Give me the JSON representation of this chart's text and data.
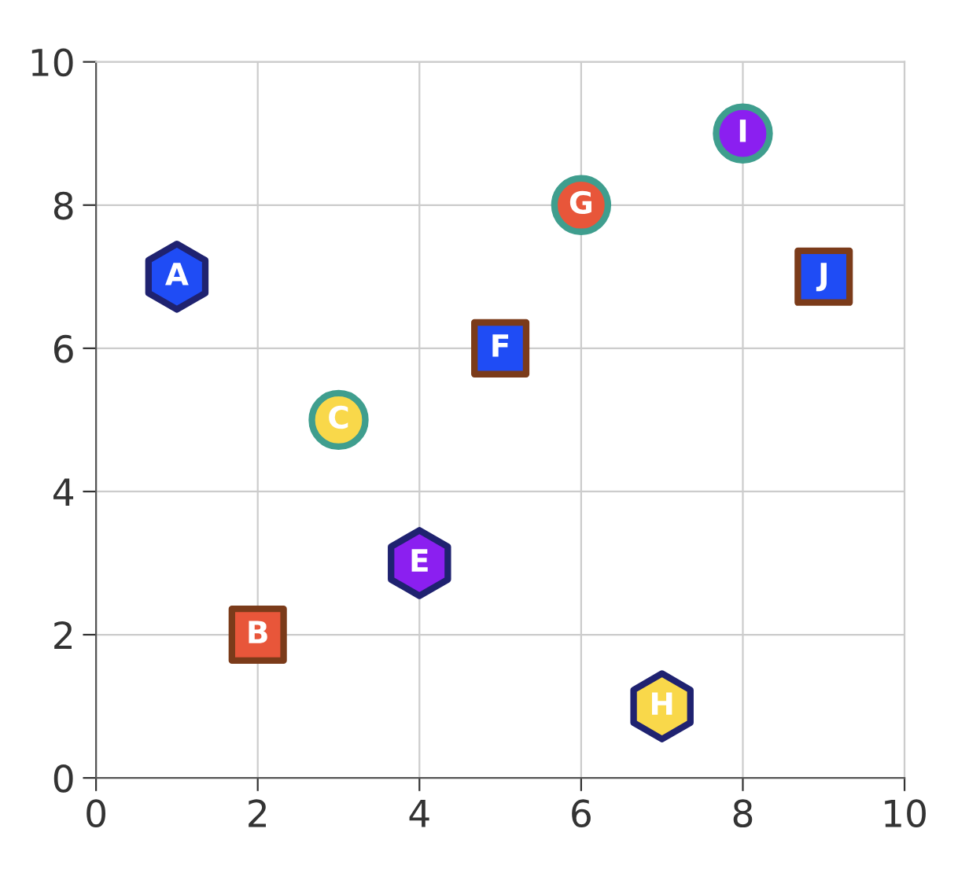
{
  "chart_data": {
    "type": "scatter",
    "xlim": [
      0,
      10
    ],
    "ylim": [
      0,
      10
    ],
    "xticks": [
      0,
      2,
      4,
      6,
      8,
      10
    ],
    "yticks": [
      0,
      2,
      4,
      6,
      8,
      10
    ],
    "grid": true,
    "series": [
      {
        "x": [
          1,
          4,
          7
        ],
        "values": [
          7,
          3,
          1
        ],
        "colors": [
          "#1f4cf5",
          "#8b1ff0",
          "#f9d84a"
        ]
      },
      {
        "marker": "square",
        "x": [
          2,
          5,
          9
        ],
        "values": [
          2,
          6,
          7
        ],
        "colors": [
          "#e8563a",
          "#1f4cf5",
          "#1f4cf5"
        ]
      },
      {
        "marker": "circle",
        "x": [
          3,
          6,
          8
        ],
        "values": [
          5,
          8,
          9
        ],
        "colors": [
          "#f9d84a",
          "#e8563a",
          "#8b1ff0"
        ]
      }
    ],
    "annotations": [
      {
        "text": "A",
        "x": 1,
        "y": 7
      },
      {
        "text": "B",
        "x": 2,
        "y": 2
      },
      {
        "text": "C",
        "x": 3,
        "y": 5
      },
      {
        "text": "E",
        "x": 4,
        "y": 3
      },
      {
        "text": "F",
        "x": 5,
        "y": 6
      },
      {
        "text": "G",
        "x": 6,
        "y": 8
      },
      {
        "text": "H",
        "x": 7,
        "y": 1
      },
      {
        "text": "I",
        "x": 8,
        "y": 9
      },
      {
        "text": "J",
        "x": 9,
        "y": 7
      }
    ]
  }
}
